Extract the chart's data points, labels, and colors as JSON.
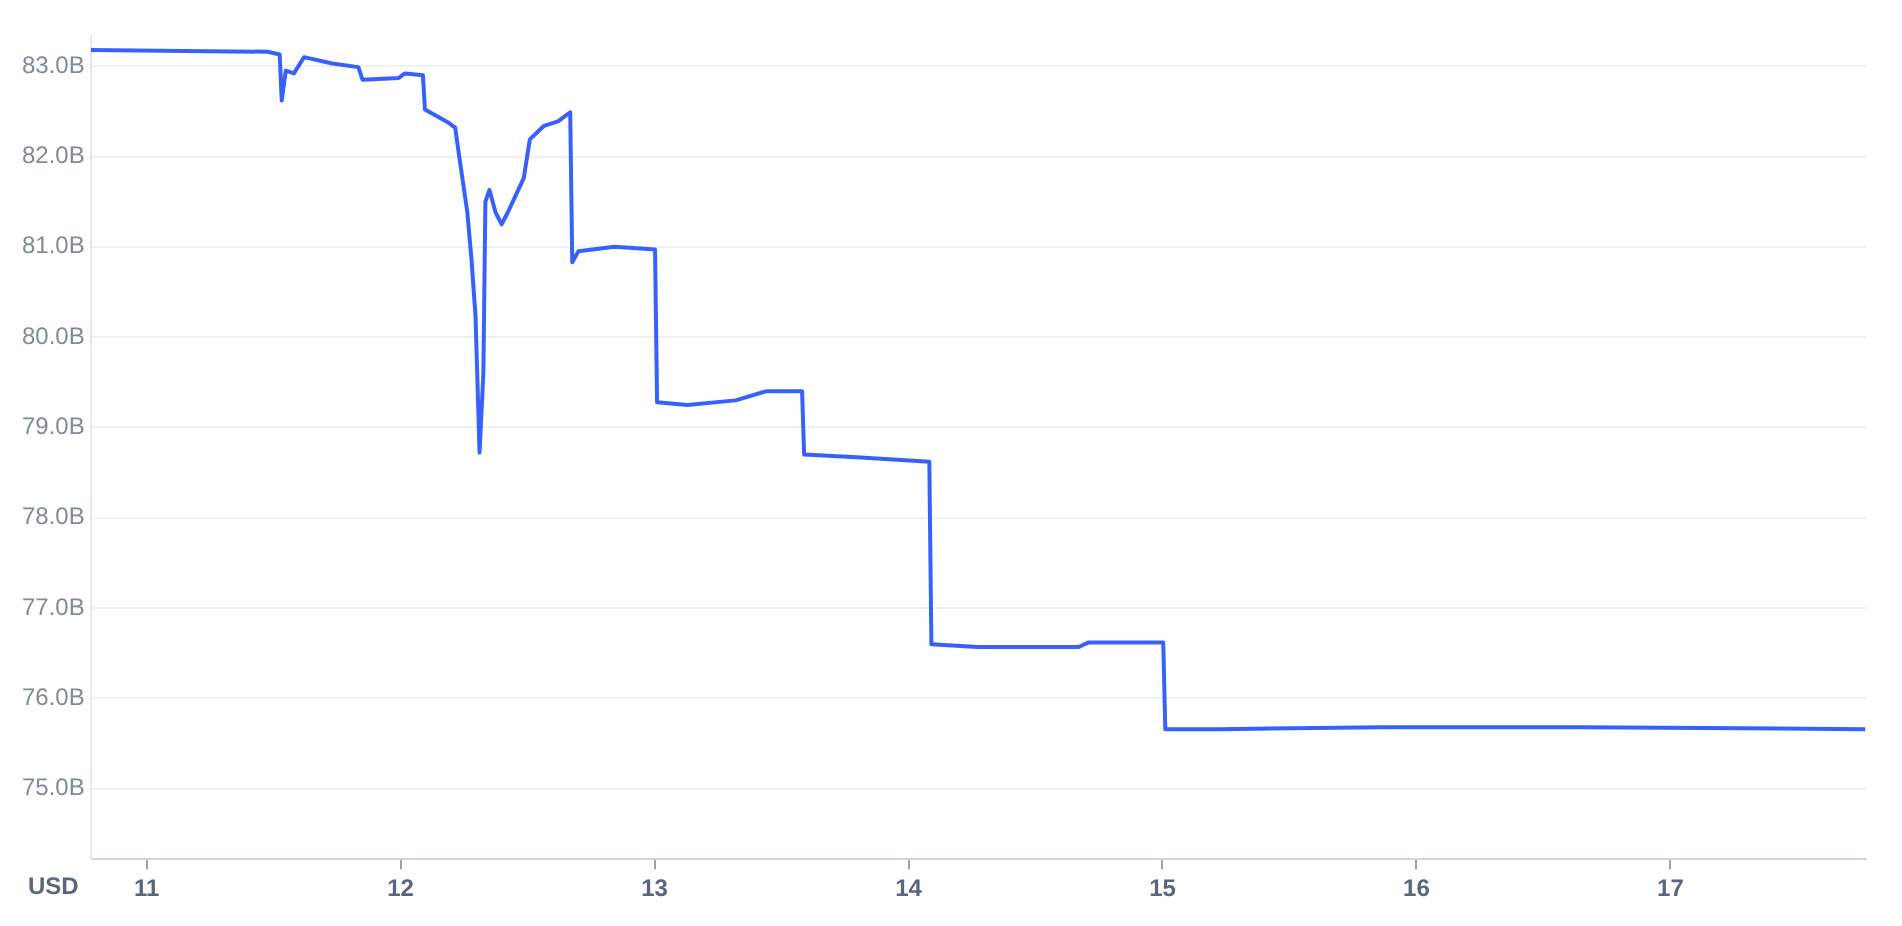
{
  "chart_data": {
    "type": "line",
    "ylabel": "USD",
    "x": [
      10.78,
      11.477,
      11.524,
      11.532,
      11.548,
      11.58,
      11.62,
      11.731,
      11.834,
      11.85,
      11.993,
      12.017,
      12.088,
      12.096,
      12.191,
      12.215,
      12.231,
      12.263,
      12.279,
      12.295,
      12.311,
      12.326,
      12.334,
      12.35,
      12.374,
      12.398,
      12.422,
      12.485,
      12.509,
      12.565,
      12.62,
      12.668,
      12.676,
      12.7,
      12.843,
      13.002,
      13.01,
      13.129,
      13.319,
      13.438,
      13.581,
      13.589,
      13.796,
      14.082,
      14.09,
      14.272,
      14.67,
      14.709,
      15.003,
      15.011,
      15.225,
      15.861,
      16.655,
      17.767
    ],
    "series": [
      {
        "color": "#3861fb",
        "values": [
          83.18,
          83.16,
          83.13,
          82.62,
          82.95,
          82.92,
          83.1,
          83.03,
          82.99,
          82.85,
          82.87,
          82.92,
          82.9,
          82.52,
          82.37,
          82.32,
          82.0,
          81.38,
          80.87,
          80.24,
          78.72,
          79.6,
          81.5,
          81.63,
          81.38,
          81.25,
          81.38,
          81.76,
          82.19,
          82.34,
          82.39,
          82.49,
          80.83,
          80.95,
          81.0,
          80.97,
          79.28,
          79.25,
          79.3,
          79.4,
          79.4,
          78.7,
          78.67,
          78.62,
          76.6,
          76.57,
          76.57,
          76.62,
          76.62,
          75.66,
          75.66,
          75.68,
          75.68,
          75.66
        ]
      }
    ],
    "xlim": [
      10.78,
      17.77
    ],
    "xticks": [
      11,
      12,
      13,
      14,
      15,
      16,
      17
    ],
    "ylim": [
      74.22,
      83.33
    ],
    "yticks": [
      {
        "value": 75,
        "label": "75.0B"
      },
      {
        "value": 76,
        "label": "76.0B"
      },
      {
        "value": 77,
        "label": "77.0B"
      },
      {
        "value": 78,
        "label": "78.0B"
      },
      {
        "value": 79,
        "label": "79.0B"
      },
      {
        "value": 80,
        "label": "80.0B"
      },
      {
        "value": 81,
        "label": "81.0B"
      },
      {
        "value": 82,
        "label": "82.0B"
      },
      {
        "value": 83,
        "label": "83.0B"
      }
    ],
    "grid": "y",
    "legend": false,
    "marker": "none",
    "line_style": "solid"
  }
}
